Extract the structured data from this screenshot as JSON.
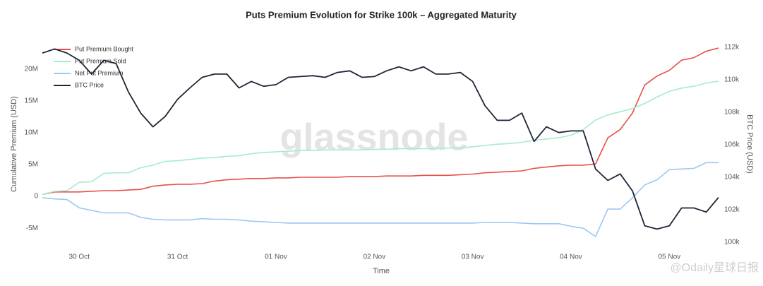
{
  "chart_data": {
    "type": "line",
    "title": "Puts Premium Evolution for Strike 100k – Aggregated Maturity",
    "x_label": "Time",
    "y_label": "Cumulative Premium (USD)",
    "y2_label": "BTC Price (USD)",
    "watermark": "glassnode",
    "source_watermark": "@Odaily星球日报",
    "legend": "top-left",
    "grid": false,
    "xlim": [
      0,
      55
    ],
    "xticks": [
      {
        "value": 3,
        "label": "30 Oct"
      },
      {
        "value": 11,
        "label": "31 Oct"
      },
      {
        "value": 19,
        "label": "01 Nov"
      },
      {
        "value": 27,
        "label": "02 Nov"
      },
      {
        "value": 35,
        "label": "03 Nov"
      },
      {
        "value": 43,
        "label": "04 Nov"
      },
      {
        "value": 51,
        "label": "05 Nov"
      }
    ],
    "ylim": [
      -8200000,
      25300000
    ],
    "yticks": [
      {
        "value": -5000000,
        "label": "-5M"
      },
      0,
      {
        "value": 5000000,
        "label": "5M"
      },
      {
        "value": 10000000,
        "label": "10M"
      },
      {
        "value": 15000000,
        "label": "15M"
      },
      {
        "value": 20000000,
        "label": "20M"
      }
    ],
    "y2lim": [
      99600,
      112740
    ],
    "y2ticks": [
      {
        "value": 100000,
        "label": "100k"
      },
      {
        "value": 102000,
        "label": "102k"
      },
      {
        "value": 104000,
        "label": "104k"
      },
      {
        "value": 106000,
        "label": "106k"
      },
      {
        "value": 108000,
        "label": "108k"
      },
      {
        "value": 110000,
        "label": "110k"
      },
      {
        "value": 112000,
        "label": "112k"
      }
    ],
    "series": [
      {
        "name": "Put Premium Bought",
        "color": "#e8504a",
        "values": [
          300000,
          700000,
          700000,
          700000,
          800000,
          900000,
          900000,
          1000000,
          1100000,
          1600000,
          1800000,
          1900000,
          1900000,
          2000000,
          2400000,
          2600000,
          2700000,
          2800000,
          2800000,
          2900000,
          2900000,
          3000000,
          3000000,
          3000000,
          3000000,
          3100000,
          3100000,
          3100000,
          3200000,
          3200000,
          3200000,
          3300000,
          3300000,
          3300000,
          3400000,
          3500000,
          3700000,
          3800000,
          3900000,
          4000000,
          4400000,
          4600000,
          4800000,
          4900000,
          4900000,
          5100000,
          9200000,
          10500000,
          13100000,
          17500000,
          18900000,
          19800000,
          21400000,
          21800000,
          22800000,
          23300000
        ]
      },
      {
        "name": "Put Premium Sold",
        "color": "#a6ebcf",
        "values": [
          300000,
          800000,
          900000,
          2200000,
          2300000,
          3600000,
          3700000,
          3700000,
          4500000,
          4900000,
          5500000,
          5600000,
          5800000,
          6000000,
          6100000,
          6300000,
          6400000,
          6700000,
          6900000,
          7000000,
          7100000,
          7200000,
          7200000,
          7300000,
          7300000,
          7300000,
          7300000,
          7400000,
          7400000,
          7500000,
          7500000,
          7500000,
          7500000,
          7600000,
          7600000,
          7800000,
          8000000,
          8200000,
          8300000,
          8500000,
          8800000,
          9000000,
          9200000,
          9600000,
          10500000,
          12000000,
          12800000,
          13300000,
          13800000,
          14600000,
          15600000,
          16500000,
          17000000,
          17300000,
          17800000,
          18100000
        ]
      },
      {
        "name": "Net Put Premium",
        "color": "#9dc8f4",
        "values": [
          -200000,
          -400000,
          -500000,
          -1800000,
          -2200000,
          -2600000,
          -2600000,
          -2600000,
          -3300000,
          -3600000,
          -3700000,
          -3700000,
          -3700000,
          -3500000,
          -3600000,
          -3600000,
          -3700000,
          -3900000,
          -4000000,
          -4100000,
          -4200000,
          -4200000,
          -4200000,
          -4200000,
          -4200000,
          -4200000,
          -4200000,
          -4200000,
          -4200000,
          -4200000,
          -4200000,
          -4200000,
          -4200000,
          -4200000,
          -4200000,
          -4200000,
          -4100000,
          -4100000,
          -4100000,
          -4200000,
          -4300000,
          -4300000,
          -4300000,
          -4700000,
          -5000000,
          -6300000,
          -2000000,
          -2000000,
          -200000,
          1800000,
          2600000,
          4200000,
          4300000,
          4400000,
          5300000,
          5300000
        ]
      },
      {
        "name": "BTC Price",
        "color": "#1f2535",
        "axis": "y2",
        "values": [
          111650,
          111900,
          111650,
          111200,
          110350,
          111200,
          111000,
          109250,
          107950,
          107100,
          107750,
          108800,
          109500,
          110150,
          110350,
          110350,
          109500,
          109900,
          109600,
          109700,
          110150,
          110200,
          110250,
          110150,
          110450,
          110550,
          110150,
          110200,
          110550,
          110800,
          110550,
          110800,
          110350,
          110350,
          110450,
          109900,
          108400,
          107500,
          107500,
          107950,
          106200,
          107100,
          106750,
          106850,
          106850,
          104500,
          103800,
          104200,
          103150,
          101000,
          100800,
          101000,
          102100,
          102100,
          101850,
          102750
        ]
      }
    ]
  }
}
